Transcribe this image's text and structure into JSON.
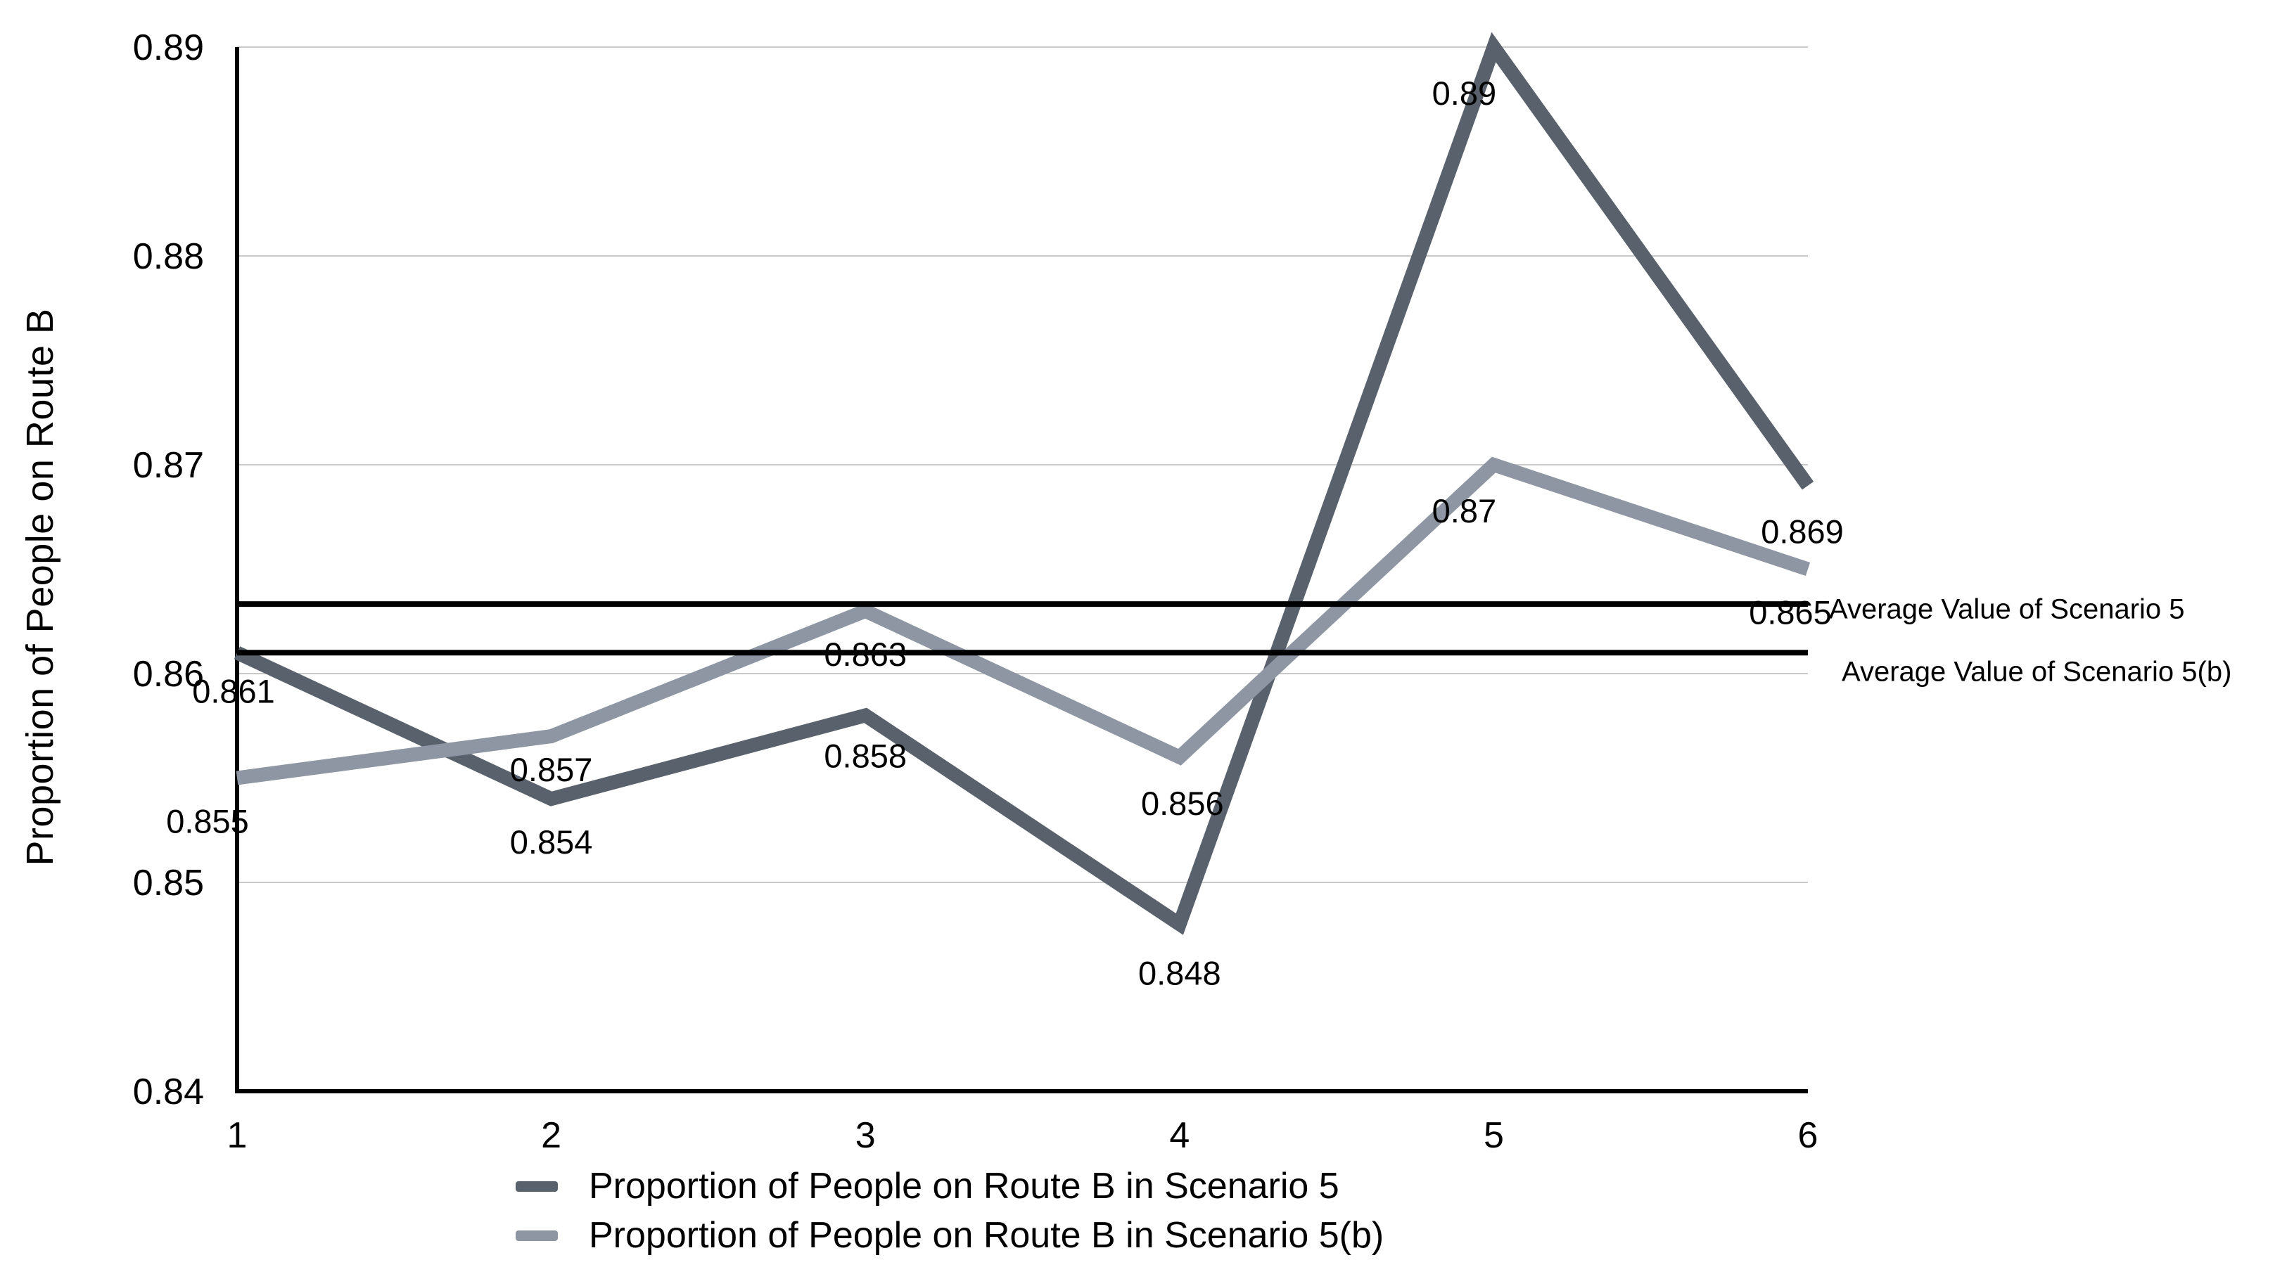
{
  "figure": {
    "background": "#ffffff",
    "text_color": "#000000",
    "grid_color": "#c9c9c9",
    "axis_color": "#000000"
  },
  "chart_data": {
    "type": "line",
    "title": "",
    "xlabel": "",
    "ylabel": "Proportion of People on Route B",
    "x": [
      1,
      2,
      3,
      4,
      5,
      6
    ],
    "x_tick_labels": [
      "1",
      "2",
      "3",
      "4",
      "5",
      "6"
    ],
    "ylim": [
      0.84,
      0.89
    ],
    "y_tick_labels": [
      "0.84",
      "0.85",
      "0.86",
      "0.87",
      "0.88",
      "0.89"
    ],
    "grid": "horizontal",
    "legend_position": "bottom-center",
    "series": [
      {
        "name": "Proportion of People on Route B in Scenario 5",
        "color": "#59626c",
        "values": [
          0.861,
          0.854,
          0.858,
          0.848,
          0.89,
          0.869
        ],
        "point_labels": [
          "0.861",
          "0.854",
          "0.858",
          "0.848",
          "0.89",
          "0.869"
        ]
      },
      {
        "name": "Proportion of People on Route B in Scenario 5(b)",
        "color": "#8d96a2",
        "values": [
          0.855,
          0.857,
          0.863,
          0.856,
          0.87,
          0.865
        ],
        "point_labels": [
          "0.855",
          "0.857",
          "0.863",
          "0.856",
          "0.87",
          "0.865"
        ]
      }
    ],
    "reference_lines": [
      {
        "label": "Average Value of Scenario 5",
        "value": 0.86333,
        "color": "#000000"
      },
      {
        "label": "Average Value of Scenario 5(b)",
        "value": 0.861,
        "color": "#000000"
      }
    ]
  }
}
